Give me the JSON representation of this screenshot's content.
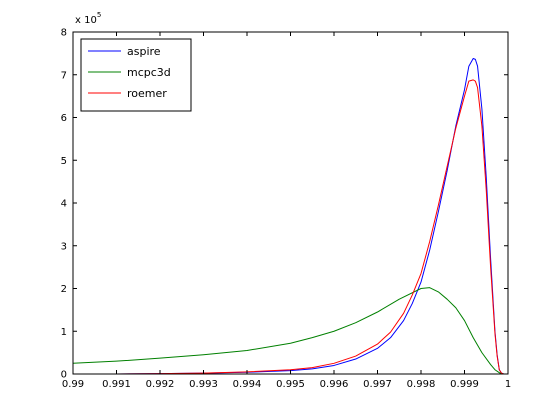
{
  "chart_data": {
    "type": "line",
    "title": "",
    "xlabel": "",
    "ylabel": "",
    "xlim": [
      0.99,
      1.0
    ],
    "ylim": [
      0,
      8
    ],
    "y_multiplier_label": "x 10",
    "y_multiplier_exponent": "5",
    "grid": false,
    "legend_position": "top-left",
    "x_ticks": [
      "0.99",
      "0.991",
      "0.992",
      "0.993",
      "0.994",
      "0.995",
      "0.996",
      "0.997",
      "0.998",
      "0.999",
      "1"
    ],
    "y_ticks": [
      "0",
      "1",
      "2",
      "3",
      "4",
      "5",
      "6",
      "7",
      "8"
    ],
    "series": [
      {
        "name": "aspire",
        "color": "#0000ff",
        "points": [
          [
            0.99,
            0.0
          ],
          [
            0.991,
            0.0
          ],
          [
            0.992,
            0.01
          ],
          [
            0.993,
            0.02
          ],
          [
            0.994,
            0.04
          ],
          [
            0.995,
            0.08
          ],
          [
            0.9955,
            0.12
          ],
          [
            0.996,
            0.2
          ],
          [
            0.9965,
            0.35
          ],
          [
            0.997,
            0.6
          ],
          [
            0.9973,
            0.85
          ],
          [
            0.9976,
            1.25
          ],
          [
            0.9978,
            1.65
          ],
          [
            0.998,
            2.15
          ],
          [
            0.9982,
            2.9
          ],
          [
            0.9984,
            3.8
          ],
          [
            0.9986,
            4.75
          ],
          [
            0.9988,
            5.8
          ],
          [
            0.999,
            6.65
          ],
          [
            0.9991,
            7.2
          ],
          [
            0.9992,
            7.38
          ],
          [
            0.99925,
            7.36
          ],
          [
            0.9993,
            7.2
          ],
          [
            0.9994,
            6.2
          ],
          [
            0.9995,
            4.6
          ],
          [
            0.9996,
            2.7
          ],
          [
            0.9997,
            1.0
          ],
          [
            0.99975,
            0.45
          ],
          [
            0.9998,
            0.1
          ],
          [
            0.99985,
            0.02
          ],
          [
            0.9999,
            0.0
          ],
          [
            1.0,
            0.0
          ]
        ]
      },
      {
        "name": "mcpc3d",
        "color": "#008000",
        "points": [
          [
            0.99,
            0.25
          ],
          [
            0.991,
            0.3
          ],
          [
            0.992,
            0.37
          ],
          [
            0.993,
            0.45
          ],
          [
            0.994,
            0.55
          ],
          [
            0.995,
            0.72
          ],
          [
            0.9955,
            0.85
          ],
          [
            0.996,
            1.0
          ],
          [
            0.9965,
            1.2
          ],
          [
            0.997,
            1.45
          ],
          [
            0.9975,
            1.75
          ],
          [
            0.998,
            2.0
          ],
          [
            0.9982,
            2.02
          ],
          [
            0.9984,
            1.92
          ],
          [
            0.9986,
            1.75
          ],
          [
            0.9988,
            1.55
          ],
          [
            0.999,
            1.25
          ],
          [
            0.9992,
            0.85
          ],
          [
            0.9994,
            0.5
          ],
          [
            0.9996,
            0.22
          ],
          [
            0.9997,
            0.1
          ],
          [
            0.9998,
            0.03
          ],
          [
            0.9999,
            0.0
          ],
          [
            1.0,
            0.0
          ]
        ]
      },
      {
        "name": "roemer",
        "color": "#ff0000",
        "points": [
          [
            0.99,
            0.0
          ],
          [
            0.991,
            0.0
          ],
          [
            0.992,
            0.01
          ],
          [
            0.993,
            0.02
          ],
          [
            0.994,
            0.05
          ],
          [
            0.995,
            0.1
          ],
          [
            0.9955,
            0.15
          ],
          [
            0.996,
            0.25
          ],
          [
            0.9965,
            0.42
          ],
          [
            0.997,
            0.7
          ],
          [
            0.9973,
            0.98
          ],
          [
            0.9976,
            1.42
          ],
          [
            0.9978,
            1.85
          ],
          [
            0.998,
            2.35
          ],
          [
            0.9982,
            3.1
          ],
          [
            0.9984,
            3.95
          ],
          [
            0.9986,
            4.85
          ],
          [
            0.9988,
            5.75
          ],
          [
            0.999,
            6.5
          ],
          [
            0.9991,
            6.85
          ],
          [
            0.9992,
            6.88
          ],
          [
            0.99925,
            6.85
          ],
          [
            0.9993,
            6.7
          ],
          [
            0.9994,
            5.8
          ],
          [
            0.9995,
            4.3
          ],
          [
            0.9996,
            2.5
          ],
          [
            0.9997,
            0.95
          ],
          [
            0.99975,
            0.42
          ],
          [
            0.9998,
            0.1
          ],
          [
            0.99985,
            0.02
          ],
          [
            0.9999,
            0.0
          ],
          [
            1.0,
            0.0
          ]
        ]
      }
    ]
  }
}
